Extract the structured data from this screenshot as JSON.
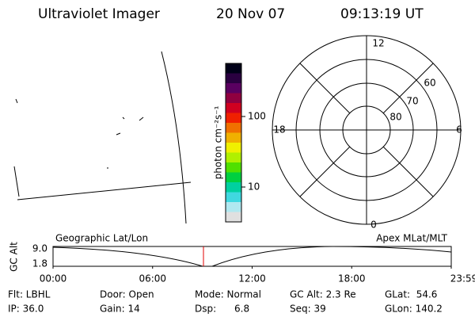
{
  "header": {
    "title": "Ultraviolet Imager",
    "date": "20 Nov 07",
    "time": "09:13:19 UT"
  },
  "colorbar": {
    "label": "photon cm⁻²s⁻¹",
    "ticks": [
      "100",
      "10"
    ]
  },
  "polar": {
    "mlt_labels": [
      "12",
      "18",
      "6",
      "0"
    ],
    "mlat_labels": [
      "60",
      "70",
      "80"
    ]
  },
  "timeline": {
    "left_title": "Geographic Lat/Lon",
    "right_title": "Apex MLat/MLT",
    "axis_label": "GC Alt",
    "y_labels": [
      "9.0",
      "1.8"
    ],
    "time_labels": [
      "00:00",
      "06:00",
      "12:00",
      "18:00",
      "23:59"
    ]
  },
  "info": {
    "rows": [
      [
        "Flt: LBHL",
        "Door: Open",
        "Mode: Normal",
        "GC Alt: 2.3 Re",
        "GLat:  54.6"
      ],
      [
        "IP: 36.0",
        "Gain: 14",
        "Dsp:      6.8",
        "Seq: 39",
        "GLon: 140.2"
      ]
    ]
  }
}
